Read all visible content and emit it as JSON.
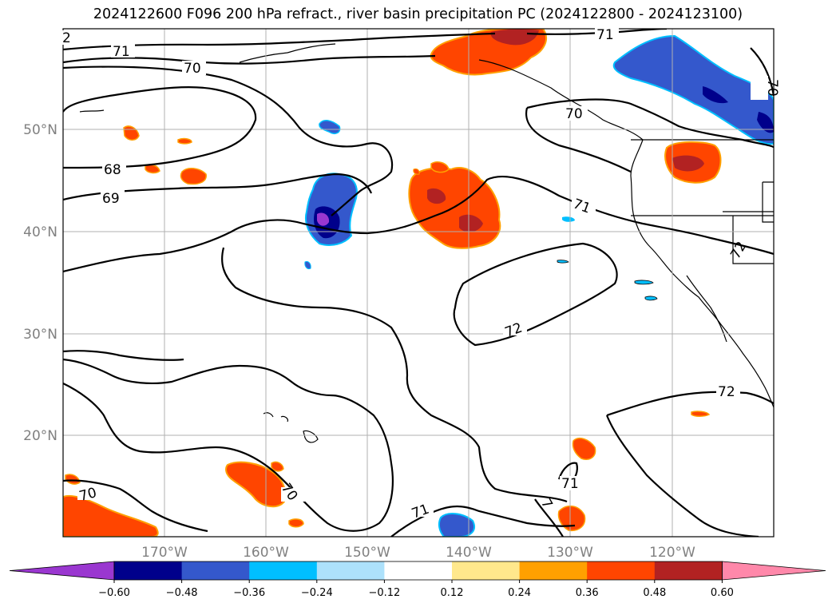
{
  "title": "2024122600 F096 200 hPa refract., river basin precipitation PC (2024122800 - 2024123100)",
  "lat_labels": [
    "50°N",
    "40°N",
    "30°N",
    "20°N"
  ],
  "lon_labels": [
    "170°W",
    "160°W",
    "150°W",
    "140°W",
    "130°W",
    "120°W"
  ],
  "contour_labels": [
    "2",
    "71",
    "70",
    "68",
    "69",
    "70",
    "71",
    "72",
    "72",
    "70",
    "70",
    "71",
    "71",
    "7",
    "71",
    "70",
    "72"
  ],
  "colorbar": {
    "tick_labels": [
      "−0.60",
      "−0.48",
      "−0.36",
      "−0.24",
      "−0.12",
      "0.12",
      "0.24",
      "0.36",
      "0.48",
      "0.60"
    ],
    "colors": [
      "#9a37d0",
      "#00008b",
      "#3458cc",
      "#00bfff",
      "#ade1fb",
      "#ffffff",
      "#ffe88c",
      "#ffa000",
      "#ff4500",
      "#b22222",
      "#ff88aa"
    ]
  }
}
